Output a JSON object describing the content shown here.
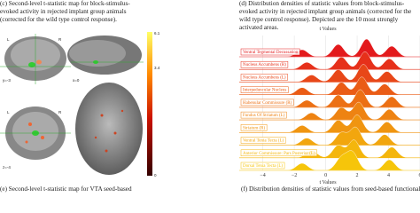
{
  "captions": {
    "c": "(c) Second-level t-statistic map for block-stimulus-evoked activity in rejected implant group animals (corrected for the wild type control response).",
    "d": "(d) Distribution densities of statistic values from block-stimulus-evoked activity in rejected implant group animals (corrected for the wild type control response). Depicted are the 10 most strongly activated areas.",
    "e": "(e) Second-level t-statistic map for VTA seed-based",
    "f": "(f) Distribution densities of statistic values from seed-based functional connectivity"
  },
  "brain": {
    "labels": [
      "L",
      "R",
      "L",
      "R"
    ],
    "coords": [
      "y=-3",
      "x=0",
      "z=-4"
    ],
    "colorbar": [
      "6.1",
      "3.4",
      "0"
    ]
  },
  "chart_data": {
    "type": "ridge",
    "top_label": "t Values",
    "xlabel": "t Values",
    "categories": [
      "Ventral Tegmental Decussation",
      "Nucleus Accumbens (R)",
      "Nucleus Accumbens (L)",
      "Interpeduncular Nucleus",
      "Habenular Commissure (R)",
      "Fundus Of Striatum (L)",
      "Striatum (R)",
      "Ventral Tenia Tecta (L)",
      "Anterior Commissure: Pars Posterior (L)",
      "Dorsal Tenia Tecta (L)"
    ],
    "colors": [
      "#e31a1c",
      "#e6301a",
      "#e84718",
      "#ea5c16",
      "#ec7014",
      "#ee8312",
      "#f09510",
      "#f2a60e",
      "#f4b60c",
      "#f6c50a"
    ],
    "xlim": [
      -5.5,
      6
    ],
    "xticks": [
      {
        "value": -4,
        "label": "−4"
      },
      {
        "value": -2,
        "label": "−2"
      },
      0,
      2,
      4,
      6
    ]
  }
}
